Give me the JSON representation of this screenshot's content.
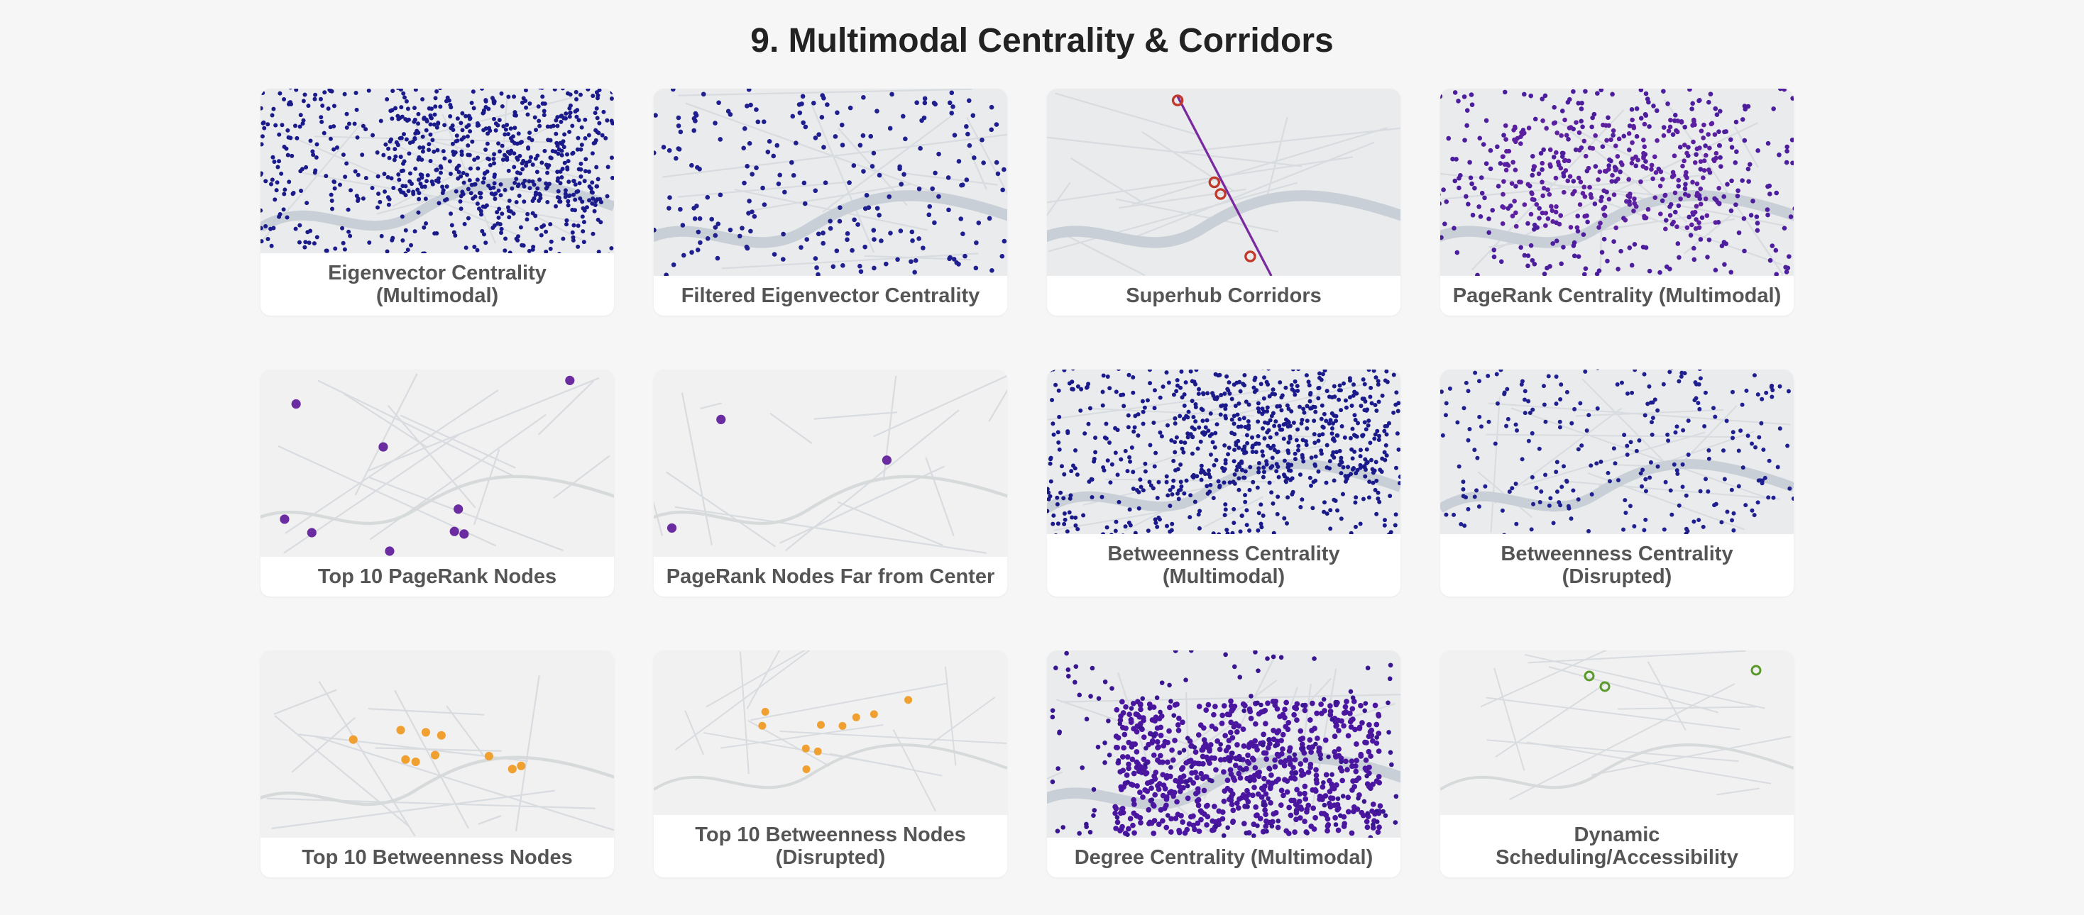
{
  "header": {
    "title": "9. Multimodal Centrality & Corridors"
  },
  "cards": [
    {
      "caption": "Eigenvector Centrality (Multimodal)"
    },
    {
      "caption": "Filtered Eigenvector Centrality"
    },
    {
      "caption": "Superhub Corridors"
    },
    {
      "caption": "PageRank Centrality (Multimodal)"
    },
    {
      "caption": "Top 10 PageRank Nodes"
    },
    {
      "caption": "PageRank Nodes Far from Center"
    },
    {
      "caption": "Betweenness Centrality (Multimodal)"
    },
    {
      "caption": "Betweenness Centrality (Disrupted)"
    },
    {
      "caption": "Top 10 Betweenness Nodes"
    },
    {
      "caption": "Top 10 Betweenness Nodes (Disrupted)"
    },
    {
      "caption": "Degree Centrality (Multimodal)"
    },
    {
      "caption": "Dynamic Scheduling/Accessibility"
    }
  ]
}
